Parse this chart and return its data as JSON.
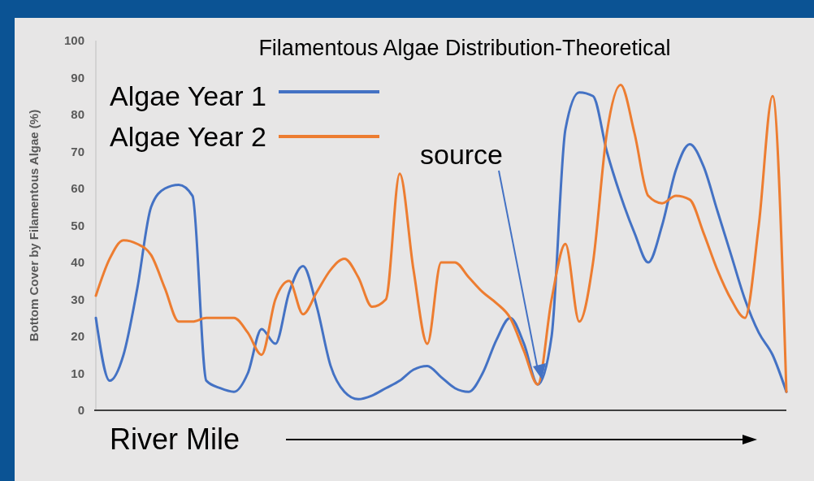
{
  "chart_data": {
    "type": "line",
    "title": "Filamentous Algae Distribution-Theoretical",
    "xlabel": "River Mile",
    "ylabel": "Bottom Cover by Filamentous Algae (%)",
    "categories": [
      null,
      null,
      null,
      null,
      null,
      null,
      null,
      null,
      null,
      null,
      null,
      null,
      null,
      null,
      null,
      null,
      null,
      null,
      null,
      null,
      null,
      null,
      null,
      null,
      null,
      null,
      null,
      null,
      null,
      null,
      null,
      null,
      null,
      null,
      null,
      null,
      null,
      null,
      null,
      null,
      null,
      null,
      null,
      null,
      null,
      null,
      null,
      null,
      null,
      null,
      null
    ],
    "series": [
      {
        "name": "Algae Year 1",
        "color": "#4472c4",
        "values": [
          25,
          8,
          15,
          33,
          55,
          60,
          61,
          58,
          8,
          6,
          5,
          10,
          22,
          18,
          32,
          39,
          28,
          12,
          5,
          3,
          4,
          6,
          8,
          11,
          12,
          9,
          6,
          5,
          10,
          19,
          25,
          18,
          7,
          20,
          76,
          86,
          85,
          70,
          58,
          48,
          40,
          50,
          65,
          72,
          66,
          54,
          42,
          30,
          21,
          15,
          5
        ]
      },
      {
        "name": "Algae Year 2",
        "color": "#ed7d31",
        "values": [
          31,
          41,
          46,
          45,
          42,
          33,
          24,
          24,
          25,
          25,
          25,
          21,
          15,
          30,
          35,
          26,
          32,
          38,
          41,
          36,
          28,
          30,
          64,
          38,
          18,
          40,
          40,
          36,
          32,
          29,
          25,
          16,
          7,
          30,
          45,
          24,
          40,
          75,
          88,
          75,
          58,
          56,
          58,
          57,
          48,
          38,
          30,
          25,
          50,
          85,
          5
        ]
      }
    ],
    "ylim": [
      0,
      100
    ],
    "yticks": [
      0,
      10,
      20,
      30,
      40,
      50,
      60,
      70,
      80,
      90,
      100
    ],
    "grid": false,
    "legend": "top left",
    "line_style": "solid",
    "annotations": [
      "source"
    ]
  }
}
